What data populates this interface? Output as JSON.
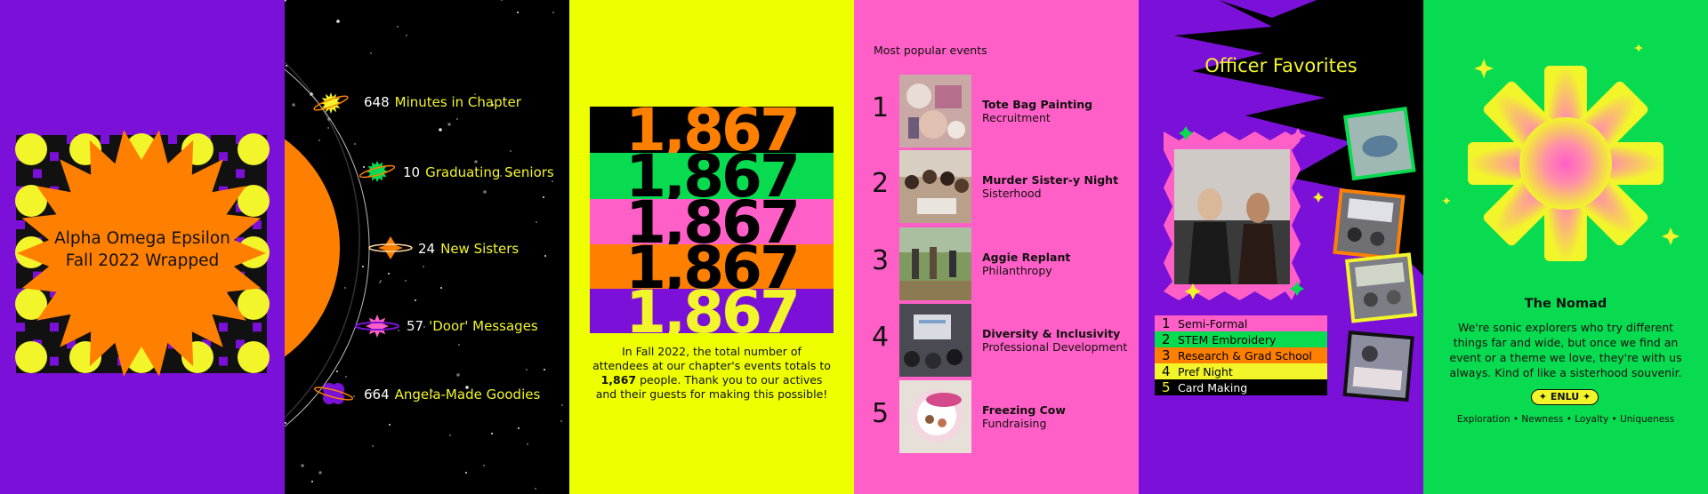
{
  "intro": {
    "title_line1": "Alpha Omega Epsilon",
    "title_line2": "Fall 2022 Wrapped",
    "colors": {
      "background": "#7b10d8",
      "sun": "#ff8000",
      "circles": "#f2f52a"
    }
  },
  "stats": {
    "items": [
      {
        "value": "648",
        "label": "Minutes in Chapter",
        "icon": "sun-planet-icon"
      },
      {
        "value": "10",
        "label": "Graduating Seniors",
        "icon": "green-burst-planet-icon"
      },
      {
        "value": "24",
        "label": "New Sisters",
        "icon": "orange-diamond-planet-icon"
      },
      {
        "value": "57",
        "label": "'Door' Messages",
        "icon": "pink-star-planet-icon"
      },
      {
        "value": "664",
        "label": "Angela-Made Goodies",
        "icon": "purple-flower-planet-icon"
      }
    ]
  },
  "attendance": {
    "number": "1,867",
    "caption_before": "In Fall 2022, the total number of attendees at our chapter's events totals to ",
    "caption_number": "1,867",
    "caption_after": " people. Thank you to our actives and their guests for making this possible!"
  },
  "popular": {
    "heading": "Most popular events",
    "events": [
      {
        "rank": "1",
        "name": "Tote Bag Painting",
        "category": "Recruitment"
      },
      {
        "rank": "2",
        "name": "Murder Sister-y Night",
        "category": "Sisterhood"
      },
      {
        "rank": "3",
        "name": "Aggie Replant",
        "category": "Philanthropy"
      },
      {
        "rank": "4",
        "name": "Diversity & Inclusivity",
        "category": "Professional Development"
      },
      {
        "rank": "5",
        "name": "Freezing Cow",
        "category": "Fundraising"
      }
    ]
  },
  "officer": {
    "title": "Officer Favorites",
    "favorites": [
      {
        "rank": "1",
        "name": "Semi-Formal"
      },
      {
        "rank": "2",
        "name": "STEM Embroidery"
      },
      {
        "rank": "3",
        "name": "Research & Grad School"
      },
      {
        "rank": "4",
        "name": "Pref Night"
      },
      {
        "rank": "5",
        "name": "Card Making"
      }
    ]
  },
  "persona": {
    "name": "The Nomad",
    "description": "We're sonic explorers who try different things far and wide, but once we find an event or a theme we love, they're with us always. Kind of like a sisterhood souvenir.",
    "badge": "ENLU",
    "traits": "Exploration • Newness • Loyalty • Uniqueness"
  }
}
